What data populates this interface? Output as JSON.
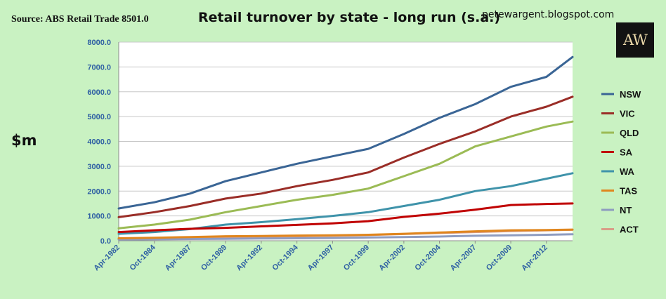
{
  "header": {
    "source": "Source: ABS Retail Trade 8501.0",
    "title": "Retail turnover by state - long run (s.a.)",
    "blog": "petewargent.blogspot.com",
    "logo_text": "AW",
    "y_unit": "$m"
  },
  "colors": {
    "background": "#c9f2c2",
    "plot_background": "#ffffff",
    "gridline": "#c8c8c8",
    "axis_text": "#2e5fa3"
  },
  "chart_data": {
    "type": "line",
    "title": "Retail turnover by state - long run (s.a.)",
    "ylabel": "$m",
    "xlabel": "",
    "ylim": [
      0,
      8000
    ],
    "y_ticks": [
      "0.0",
      "1000.0",
      "2000.0",
      "3000.0",
      "4000.0",
      "5000.0",
      "6000.0",
      "7000.0",
      "8000.0"
    ],
    "x_range": [
      "1982-04",
      "2014-02"
    ],
    "x_ticks": [
      "Apr-1982",
      "Oct-1984",
      "Apr-1987",
      "Oct-1989",
      "Apr-1992",
      "Oct-1994",
      "Apr-1997",
      "Oct-1999",
      "Apr-2002",
      "Oct-2004",
      "Apr-2007",
      "Oct-2009",
      "Apr-2012"
    ],
    "grid": true,
    "legend_position": "right",
    "x": [
      "1982-04",
      "1984-10",
      "1987-04",
      "1989-10",
      "1992-04",
      "1994-10",
      "1997-04",
      "1999-10",
      "2002-04",
      "2004-10",
      "2007-04",
      "2009-10",
      "2012-04",
      "2014-02"
    ],
    "series": [
      {
        "name": "NSW",
        "color": "#3a6595",
        "values": [
          1300,
          1550,
          1900,
          2400,
          2750,
          3100,
          3400,
          3700,
          4300,
          4950,
          5500,
          6200,
          6600,
          7400
        ]
      },
      {
        "name": "VIC",
        "color": "#9a2d27",
        "values": [
          950,
          1150,
          1400,
          1700,
          1900,
          2200,
          2450,
          2750,
          3350,
          3900,
          4400,
          5000,
          5400,
          5800
        ]
      },
      {
        "name": "QLD",
        "color": "#9bbb55",
        "values": [
          500,
          650,
          850,
          1150,
          1400,
          1650,
          1850,
          2100,
          2600,
          3100,
          3800,
          4200,
          4600,
          4800
        ]
      },
      {
        "name": "SA",
        "color": "#c00000",
        "values": [
          350,
          420,
          480,
          520,
          580,
          640,
          700,
          790,
          960,
          1090,
          1250,
          1440,
          1480,
          1500
        ]
      },
      {
        "name": "WA",
        "color": "#3f93aa",
        "values": [
          280,
          350,
          470,
          650,
          750,
          870,
          1000,
          1150,
          1400,
          1650,
          2000,
          2200,
          2500,
          2720
        ]
      },
      {
        "name": "TAS",
        "color": "#e0861e",
        "values": [
          100,
          120,
          150,
          180,
          190,
          210,
          220,
          240,
          280,
          330,
          380,
          420,
          430,
          450
        ]
      },
      {
        "name": "NT",
        "color": "#8e9cc0",
        "values": [
          50,
          60,
          70,
          80,
          90,
          100,
          110,
          130,
          150,
          170,
          200,
          220,
          240,
          260
        ]
      },
      {
        "name": "ACT",
        "color": "#d99d87",
        "values": [
          70,
          90,
          110,
          140,
          160,
          180,
          200,
          230,
          270,
          310,
          350,
          390,
          420,
          440
        ]
      }
    ]
  }
}
